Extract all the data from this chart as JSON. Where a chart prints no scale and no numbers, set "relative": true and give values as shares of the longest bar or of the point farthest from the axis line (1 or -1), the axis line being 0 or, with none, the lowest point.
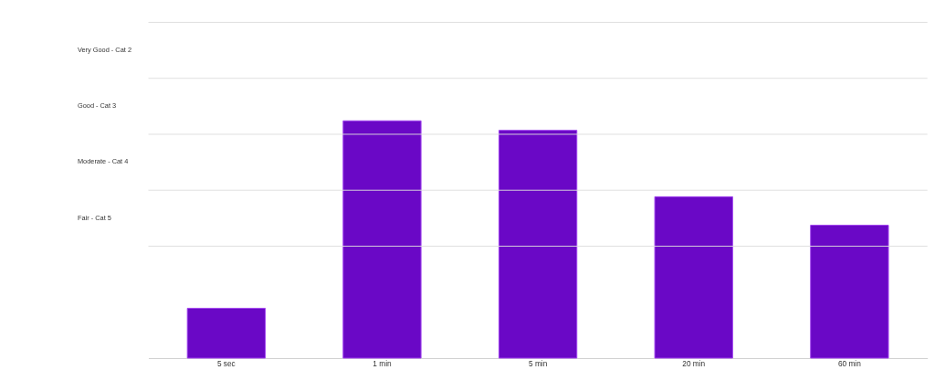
{
  "chart_data": {
    "type": "bar",
    "relative": true,
    "categories": [
      "5 sec",
      "1 min",
      "5 min",
      "20 min",
      "60 min"
    ],
    "series": [
      {
        "color": "#6a08c6",
        "values": [
          0.21,
          1,
          0.96,
          0.68,
          0.56
        ]
      }
    ],
    "annotations": [
      "Very Good - Cat 2",
      "Good - Cat 3",
      "Moderate - Cat 4",
      "Fair - Cat 5"
    ],
    "grid": "y"
  }
}
